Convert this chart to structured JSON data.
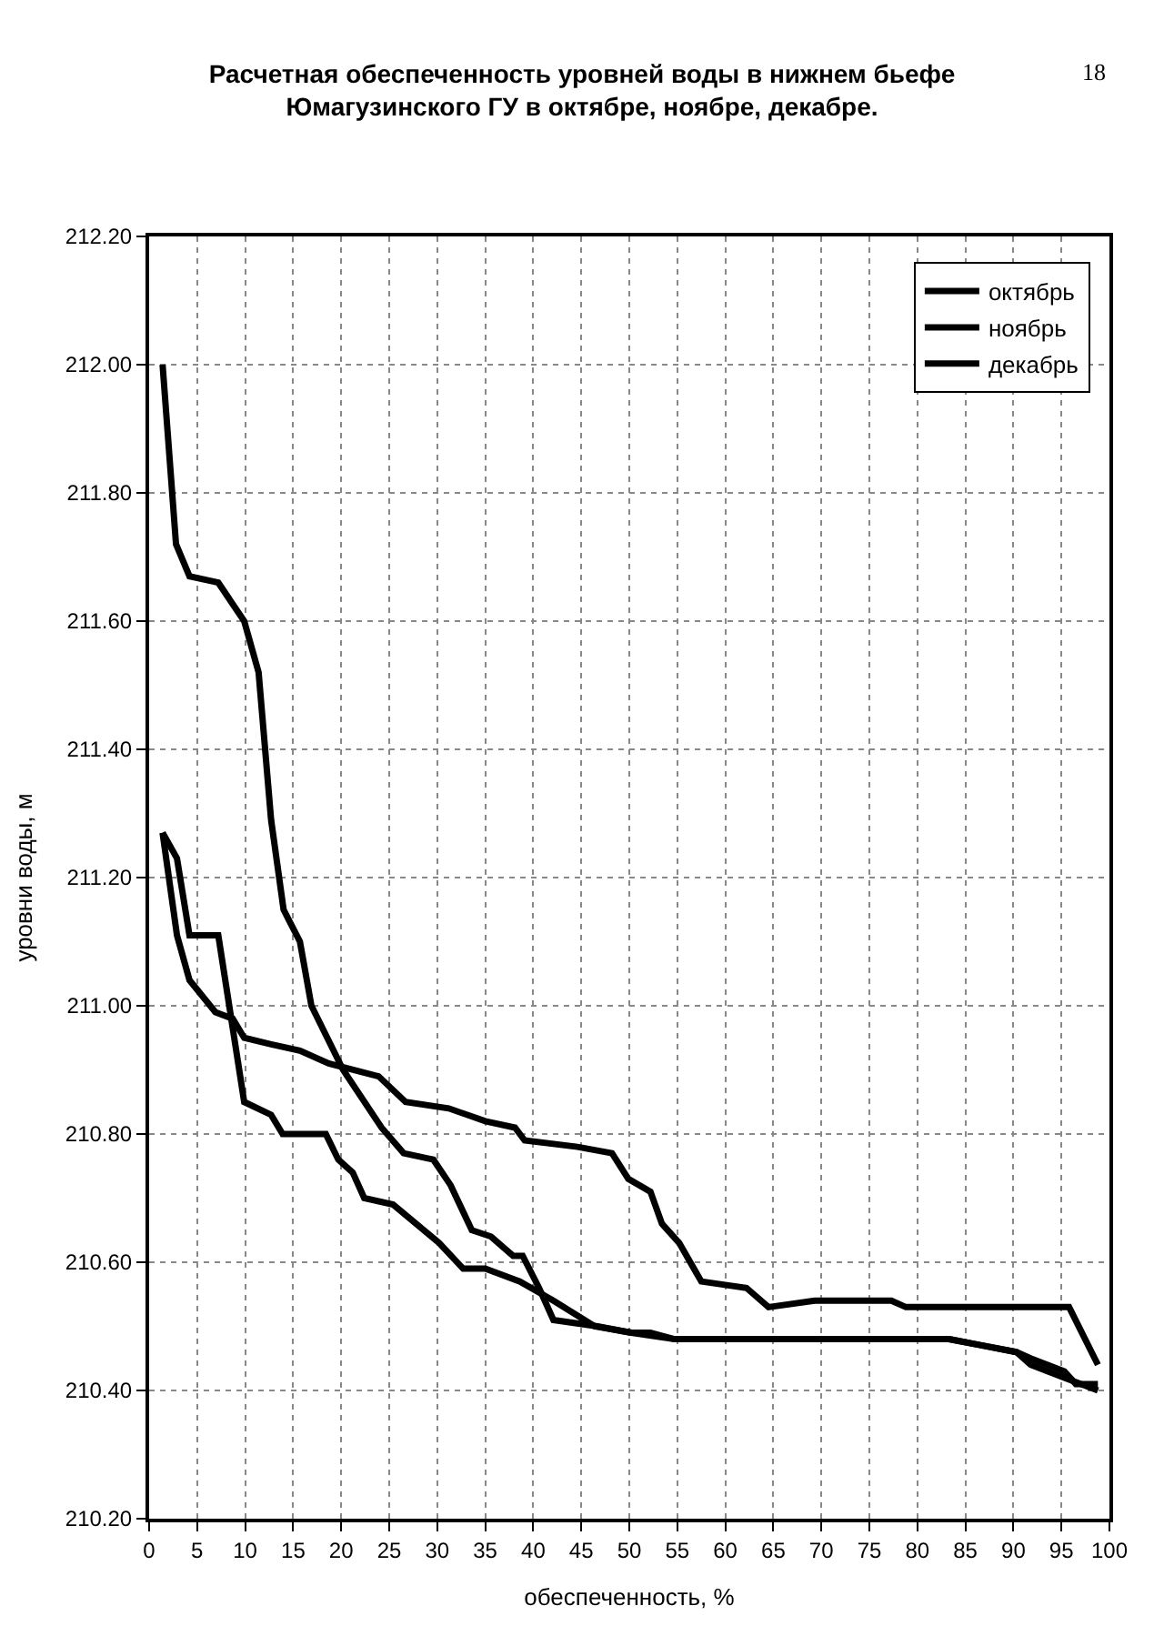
{
  "chart_data": {
    "type": "line",
    "title": "Расчетная обеспеченность уровней воды в нижнем бьефе Юмагузинского ГУ в октябре, ноябре, декабре.",
    "xlabel": "обеспеченность, %",
    "ylabel": "уровни воды, м",
    "annotations": [
      "18"
    ],
    "series": [
      {
        "name": "октябрь",
        "color": "#000000",
        "x": [
          1.4,
          2.8,
          4.2,
          7.2,
          9.9,
          11.4,
          12.7,
          14.0,
          15.7,
          16.9,
          20.2,
          24.2,
          26.5,
          29.6,
          31.4,
          33.6,
          35.6,
          37.9,
          38.9,
          40.6,
          42.1,
          46.7,
          50.2,
          54.7,
          69.3,
          83.3,
          86.8,
          90.3,
          91.8,
          95.3,
          98.8
        ],
        "values": [
          212.0,
          211.72,
          211.67,
          211.66,
          211.6,
          211.52,
          211.29,
          211.15,
          211.1,
          211.0,
          210.9,
          210.81,
          210.77,
          210.76,
          210.72,
          210.65,
          210.64,
          210.61,
          210.61,
          210.56,
          210.51,
          210.5,
          210.49,
          210.48,
          210.48,
          210.48,
          210.47,
          210.46,
          210.44,
          210.42,
          210.4
        ]
      },
      {
        "name": "ноябрь",
        "color": "#000000",
        "x": [
          1.4,
          2.9,
          4.2,
          7.2,
          9.9,
          12.7,
          13.9,
          18.4,
          19.7,
          21.2,
          22.4,
          25.4,
          30.2,
          32.7,
          35.0,
          38.6,
          42.1,
          46.4,
          50.2,
          52.2,
          54.7,
          69.3,
          83.3,
          86.8,
          90.3,
          91.8,
          95.3,
          96.5,
          98.8
        ],
        "values": [
          211.27,
          211.23,
          211.11,
          211.11,
          210.85,
          210.83,
          210.8,
          210.8,
          210.76,
          210.74,
          210.7,
          210.69,
          210.63,
          210.59,
          210.59,
          210.57,
          210.54,
          210.5,
          210.49,
          210.49,
          210.48,
          210.48,
          210.48,
          210.47,
          210.46,
          210.45,
          210.43,
          210.41,
          210.41
        ]
      },
      {
        "name": "декабрь",
        "color": "#000000",
        "x": [
          1.4,
          2.9,
          4.2,
          6.9,
          8.7,
          9.9,
          12.7,
          15.7,
          18.7,
          23.9,
          26.7,
          31.2,
          35.0,
          38.1,
          39.1,
          44.6,
          48.2,
          49.9,
          52.2,
          53.4,
          55.2,
          57.5,
          62.2,
          64.5,
          69.3,
          77.3,
          78.8,
          95.8,
          98.8
        ],
        "values": [
          211.27,
          211.11,
          211.04,
          210.99,
          210.98,
          210.95,
          210.94,
          210.93,
          210.91,
          210.89,
          210.85,
          210.84,
          210.82,
          210.81,
          210.79,
          210.78,
          210.77,
          210.73,
          210.71,
          210.66,
          210.63,
          210.57,
          210.56,
          210.53,
          210.54,
          210.54,
          210.53,
          210.53,
          210.44
        ]
      }
    ],
    "xlim": [
      0,
      100
    ],
    "xticks": [
      0,
      5,
      10,
      15,
      20,
      25,
      30,
      35,
      40,
      45,
      50,
      55,
      60,
      65,
      70,
      75,
      80,
      85,
      90,
      95,
      100
    ],
    "ylim": [
      210.2,
      212.2
    ],
    "yticks": [
      {
        "value": 210.2,
        "label": "210.20"
      },
      {
        "value": 210.4,
        "label": "210.40"
      },
      {
        "value": 210.6,
        "label": "210.60"
      },
      {
        "value": 210.8,
        "label": "210.80"
      },
      {
        "value": 211.0,
        "label": "211.00"
      },
      {
        "value": 211.2,
        "label": "211.20"
      },
      {
        "value": 211.4,
        "label": "211.40"
      },
      {
        "value": 211.6,
        "label": "211.60"
      },
      {
        "value": 211.8,
        "label": "211.80"
      },
      {
        "value": 212.0,
        "label": "212.00"
      },
      {
        "value": 212.2,
        "label": "212.20"
      }
    ],
    "grid": true,
    "legend": "top right",
    "marker": "none",
    "line_style": "solid"
  }
}
